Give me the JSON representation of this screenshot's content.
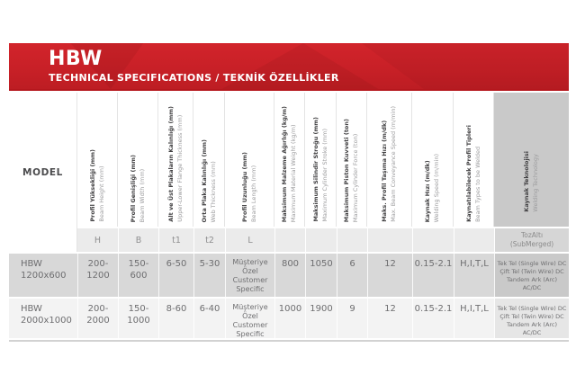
{
  "banner": {
    "title": "HBW",
    "subtitle": "TECHNICAL SPECIFICATIONS / TEKNİK ÖZELLİKLER"
  },
  "colors": {
    "banner_red": "#c82027",
    "banner_red_dark": "#b5171d",
    "shaded_row": "#d8d8d8",
    "light_row": "#f3f3f3",
    "tech_column_gray": "#c9c9c9",
    "subheader_gray": "#ebebeb"
  },
  "table": {
    "model_header": "MODEL",
    "columns": [
      {
        "tr": "Profil Yüksekliği (mm)",
        "en": "Beam Height (mm)",
        "sub": "H"
      },
      {
        "tr": "Profil Genişliği (mm)",
        "en": "Beam Width (mm)",
        "sub": "B"
      },
      {
        "tr": "Alt ve Üst Plakaların Kalınlığı (mm)",
        "en": "Upper-Lower Flange Thickness (mm)",
        "sub": "t1"
      },
      {
        "tr": "Orta Plaka Kalınlığı (mm)",
        "en": "Web Thickness (mm)",
        "sub": "t2"
      },
      {
        "tr": "Profil Uzunluğu (mm)",
        "en": "Beam Length (mm)",
        "sub": "L"
      },
      {
        "tr": "Maksimum Malzeme Ağırlığı (kg/m)",
        "en": "Maximum Material Weight (kg/m)",
        "sub": ""
      },
      {
        "tr": "Maksimum Silindir Stroğu (mm)",
        "en": "Maximum Cylinder Stroke (mm)",
        "sub": ""
      },
      {
        "tr": "Maksimum Piston Kuvveti (ton)",
        "en": "Maximum Cylinder Force (ton)",
        "sub": ""
      },
      {
        "tr": "Maks. Profil Taşıma Hızı (m/dk)",
        "en": "Max. Beam Conveyance Speed (m/min)",
        "sub": ""
      },
      {
        "tr": "Kaynak Hızı (m/dk)",
        "en": "Welding Speed (m/min)",
        "sub": ""
      },
      {
        "tr": "Kaynatılabilecek Profil Tipleri",
        "en": "Beam Types to be Welded",
        "sub": ""
      },
      {
        "tr": "Kaynak Teknolojisi",
        "en": "Welding Technology",
        "sub": "TozAltı\n(SubMerged)"
      }
    ],
    "rows": [
      {
        "model": "HBW\n1200x600",
        "h": "200-\n1200",
        "b": "150-\n600",
        "t1": "6-50",
        "t2": "5-30",
        "l": "Müşteriye\nÖzel\nCustomer\nSpecific",
        "weight": "800",
        "stroke": "1050",
        "force": "6",
        "conveyance": "12",
        "speed": "0.15-2.1",
        "types": "H,I,T,L",
        "tech": "Tek Tel (Single Wire) DC\nÇift Tel (Twin Wire) DC\nTandem Ark (Arc)\nAC/DC"
      },
      {
        "model": "HBW\n2000x1000",
        "h": "200-\n2000",
        "b": "150-\n1000",
        "t1": "8-60",
        "t2": "6-40",
        "l": "Müşteriye\nÖzel\nCustomer\nSpecific",
        "weight": "1000",
        "stroke": "1900",
        "force": "9",
        "conveyance": "12",
        "speed": "0.15-2.1",
        "types": "H,I,T,L",
        "tech": "Tek Tel (Single Wire) DC\nÇift Tel (Twin Wire) DC\nTandem Ark (Arc)\nAC/DC"
      }
    ]
  }
}
